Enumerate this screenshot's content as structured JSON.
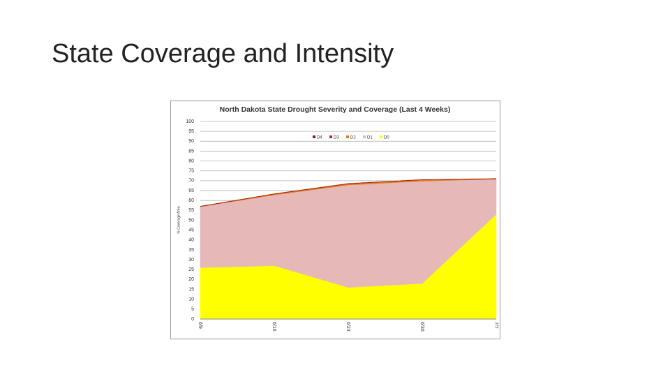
{
  "slide_title": "State Coverage and Intensity",
  "chart_data": {
    "type": "stacked_area",
    "title": "North Dakota State Drought Severity and Coverage (Last 4 Weeks)",
    "y_label": "% Coverage Area",
    "categories": [
      "6/9",
      "6/16",
      "6/23",
      "6/30",
      "7/7"
    ],
    "series": [
      {
        "name": "D4",
        "color": "#8b1a1a",
        "values": [
          0,
          0,
          0,
          0,
          0
        ]
      },
      {
        "name": "D3",
        "color": "#d4145a",
        "values": [
          0,
          0,
          0,
          0,
          0
        ]
      },
      {
        "name": "D2",
        "color": "#e07b20",
        "values": [
          0,
          0.3,
          0.5,
          0.5,
          0
        ]
      },
      {
        "name": "D1",
        "color": "#e6b8b7",
        "values": [
          31,
          36,
          52,
          52,
          18
        ]
      },
      {
        "name": "D0",
        "color": "#ffff00",
        "values": [
          26,
          27,
          16,
          18,
          53
        ]
      }
    ],
    "ylim": [
      0,
      100
    ],
    "yticks": [
      0,
      5,
      10,
      15,
      20,
      25,
      30,
      35,
      40,
      45,
      50,
      55,
      60,
      65,
      70,
      75,
      80,
      85,
      90,
      95,
      100
    ],
    "grid": true,
    "legend": "top"
  }
}
